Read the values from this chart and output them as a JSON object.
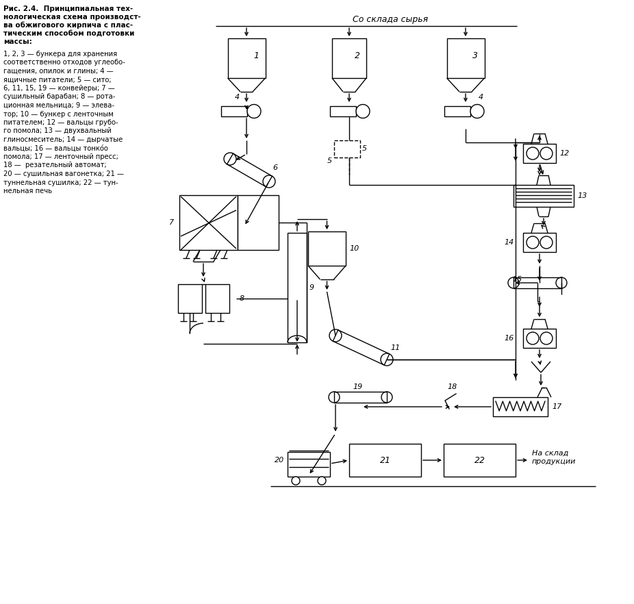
{
  "bg_color": "#ffffff",
  "line_color": "#000000",
  "text_color": "#000000",
  "title_lines": [
    "Рис. 2.4.  Принципиальная тех-",
    "нологическая схема производст-",
    "ва обжигового кирпича с плас-",
    "тическим способом подготовки",
    "массы:"
  ],
  "legend_lines": [
    "1, 2, 3 — бункера для хранения",
    "соответственно отходов углеобо-",
    "гащения, опилок и глины; 4 —",
    "ящичные питатели; 5 — сито;",
    "6, 11, 15, 19 — конвейеры; 7 —",
    "сушильный барабан; 8 — рота-",
    "ционная мельница; 9 — элева-",
    "тор; 10 — бункер с ленточным",
    "питателем; 12 — вальцы грубо-",
    "го помола; 13 — двухвальный",
    "глиносмеситель; 14 — дырчатые",
    "вальцы; 16 — вальцы тонко́о",
    "помола; 17 — ленточный пресс;",
    "18 —  резательный автомат;",
    "20 — сушильная вагонетка; 21 —",
    "туннельная сушилка; 22 — тун-",
    "нельная печь"
  ],
  "header_text": "Со склада сырья",
  "na_sklad_text": "На склад\nпродукции"
}
